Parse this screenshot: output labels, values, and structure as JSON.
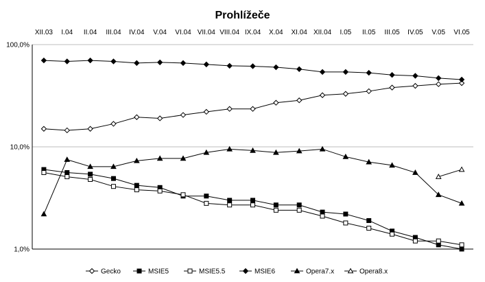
{
  "chart_data": {
    "type": "line",
    "title": "Prohlížeče",
    "yscale": "log",
    "ylim": [
      1,
      100
    ],
    "yticks": [
      1,
      10,
      100
    ],
    "ytick_labels": [
      "1,0%",
      "10,0%",
      "100,0%"
    ],
    "grid": true,
    "legend_position": "bottom",
    "categories": [
      "XII.03",
      "I.04",
      "II.04",
      "III.04",
      "IV.04",
      "V.04",
      "VI.04",
      "VII.04",
      "VIII.04",
      "IX.04",
      "X.04",
      "XI.04",
      "XII.04",
      "I.05",
      "II.05",
      "III.05",
      "IV.05",
      "V.05",
      "VI.05"
    ],
    "series": [
      {
        "name": "Gecko",
        "marker": "diamond-open",
        "values": [
          15,
          14.5,
          15,
          16.8,
          19.5,
          19,
          20.5,
          22,
          23.5,
          23.5,
          27,
          28.5,
          32,
          33,
          35,
          38,
          39.5,
          41,
          42
        ]
      },
      {
        "name": "MSIE5",
        "marker": "square-filled",
        "values": [
          6.0,
          5.6,
          5.4,
          4.9,
          4.2,
          4.0,
          3.3,
          3.3,
          3.0,
          3.0,
          2.7,
          2.7,
          2.3,
          2.2,
          1.9,
          1.5,
          1.3,
          1.1,
          1.0
        ]
      },
      {
        "name": "MSIE5.5",
        "marker": "square-open",
        "values": [
          5.6,
          5.1,
          4.8,
          4.1,
          3.8,
          3.7,
          3.4,
          2.8,
          2.7,
          2.7,
          2.4,
          2.4,
          2.1,
          1.8,
          1.6,
          1.4,
          1.2,
          1.2,
          1.1
        ]
      },
      {
        "name": "MSIE6",
        "marker": "diamond-filled",
        "values": [
          70,
          68.5,
          70,
          68.5,
          66,
          67,
          66,
          64,
          62,
          61.5,
          60,
          57.5,
          54,
          54,
          53,
          50.5,
          49.5,
          47,
          45.5
        ]
      },
      {
        "name": "Opera7.x",
        "marker": "triangle-filled",
        "values": [
          2.2,
          7.5,
          6.4,
          6.4,
          7.3,
          7.7,
          7.7,
          8.8,
          9.5,
          9.2,
          8.8,
          9.1,
          9.5,
          8.0,
          7.1,
          6.6,
          5.6,
          3.4,
          2.8
        ]
      },
      {
        "name": "Opera8.x",
        "marker": "triangle-open",
        "values": [
          null,
          null,
          null,
          null,
          null,
          null,
          null,
          null,
          null,
          null,
          null,
          null,
          null,
          null,
          null,
          null,
          null,
          5.1,
          6.0
        ]
      }
    ]
  }
}
